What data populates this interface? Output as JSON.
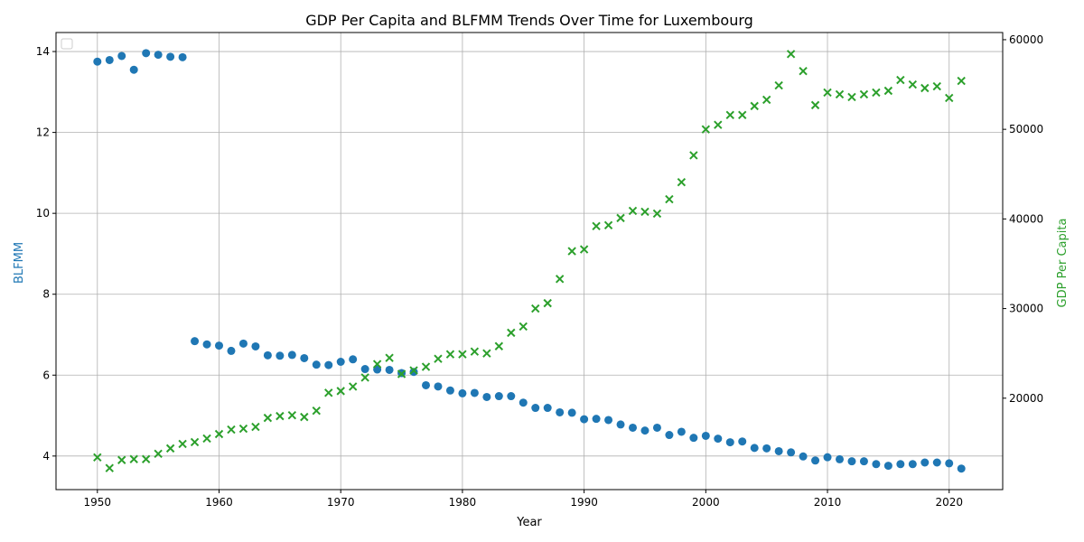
{
  "colors": {
    "blfmm": "#1f77b4",
    "gdp": "#2ca02c",
    "grid": "#b0b0b0",
    "axis": "#000000"
  },
  "chart_data": {
    "type": "scatter",
    "title": "GDP Per Capita and BLFMM Trends Over Time for Luxembourg",
    "xlabel": "Year",
    "ylabel_left": "BLFMM",
    "ylabel_right": "GDP Per Capita",
    "grid": true,
    "legend": "top-left (empty box)",
    "xlim": [
      1946.6,
      2024.4
    ],
    "ylim_left": [
      3.17,
      14.47
    ],
    "ylim_right": [
      9800,
      60800
    ],
    "x_ticks": [
      1950,
      1960,
      1970,
      1980,
      1990,
      2000,
      2010,
      2020
    ],
    "y_ticks_left": [
      4,
      6,
      8,
      10,
      12,
      14
    ],
    "y_ticks_right": [
      20000,
      30000,
      40000,
      50000,
      60000
    ],
    "series": [
      {
        "axis": "left",
        "marker": "circle",
        "x": [
          1950,
          1951,
          1952,
          1953,
          1954,
          1955,
          1956,
          1957,
          1958,
          1959,
          1960,
          1961,
          1962,
          1963,
          1964,
          1965,
          1966,
          1967,
          1968,
          1969,
          1970,
          1971,
          1972,
          1973,
          1974,
          1975,
          1976,
          1977,
          1978,
          1979,
          1980,
          1981,
          1982,
          1983,
          1984,
          1985,
          1986,
          1987,
          1988,
          1989,
          1990,
          1991,
          1992,
          1993,
          1994,
          1995,
          1996,
          1997,
          1998,
          1999,
          2000,
          2001,
          2002,
          2003,
          2004,
          2005,
          2006,
          2007,
          2008,
          2009,
          2010,
          2011,
          2012,
          2013,
          2014,
          2015,
          2016,
          2017,
          2018,
          2019,
          2020,
          2021
        ],
        "y": [
          13.75,
          13.79,
          13.89,
          13.55,
          13.96,
          13.92,
          13.87,
          13.86,
          6.84,
          6.76,
          6.73,
          6.6,
          6.78,
          6.71,
          6.49,
          6.48,
          6.5,
          6.42,
          6.26,
          6.25,
          6.33,
          6.39,
          6.15,
          6.14,
          6.13,
          6.05,
          6.08,
          5.75,
          5.72,
          5.62,
          5.55,
          5.56,
          5.46,
          5.48,
          5.48,
          5.32,
          5.19,
          5.19,
          5.08,
          5.07,
          4.91,
          4.92,
          4.89,
          4.78,
          4.7,
          4.63,
          4.7,
          4.52,
          4.6,
          4.45,
          4.5,
          4.43,
          4.34,
          4.36,
          4.2,
          4.19,
          4.12,
          4.09,
          3.99,
          3.89,
          3.97,
          3.92,
          3.87,
          3.87,
          3.8,
          3.76,
          3.8,
          3.8,
          3.84,
          3.84,
          3.82,
          3.69
        ]
      },
      {
        "axis": "right",
        "marker": "x",
        "x": [
          1950,
          1951,
          1952,
          1953,
          1954,
          1955,
          1956,
          1957,
          1958,
          1959,
          1960,
          1961,
          1962,
          1963,
          1964,
          1965,
          1966,
          1967,
          1968,
          1969,
          1970,
          1971,
          1972,
          1973,
          1974,
          1975,
          1976,
          1977,
          1978,
          1979,
          1980,
          1981,
          1982,
          1983,
          1984,
          1985,
          1986,
          1987,
          1988,
          1989,
          1990,
          1991,
          1992,
          1993,
          1994,
          1995,
          1996,
          1997,
          1998,
          1999,
          2000,
          2001,
          2002,
          2003,
          2004,
          2005,
          2006,
          2007,
          2008,
          2009,
          2010,
          2011,
          2012,
          2013,
          2014,
          2015,
          2016,
          2017,
          2018,
          2019,
          2020,
          2021
        ],
        "y": [
          13400,
          12200,
          13100,
          13200,
          13200,
          13800,
          14400,
          14900,
          15100,
          15500,
          16000,
          16500,
          16600,
          16800,
          17800,
          18000,
          18100,
          17900,
          18600,
          20600,
          20800,
          21300,
          22300,
          23800,
          24500,
          22700,
          23100,
          23500,
          24400,
          24900,
          24900,
          25200,
          25000,
          25800,
          27300,
          28000,
          30000,
          30600,
          33300,
          36400,
          36600,
          39200,
          39300,
          40100,
          40900,
          40800,
          40600,
          42200,
          44100,
          47100,
          50000,
          50500,
          51600,
          51600,
          52600,
          53300,
          54900,
          58400,
          56500,
          52700,
          54100,
          53900,
          53600,
          53900,
          54100,
          54300,
          55500,
          55000,
          54600,
          54800,
          53500,
          55400
        ]
      }
    ]
  }
}
